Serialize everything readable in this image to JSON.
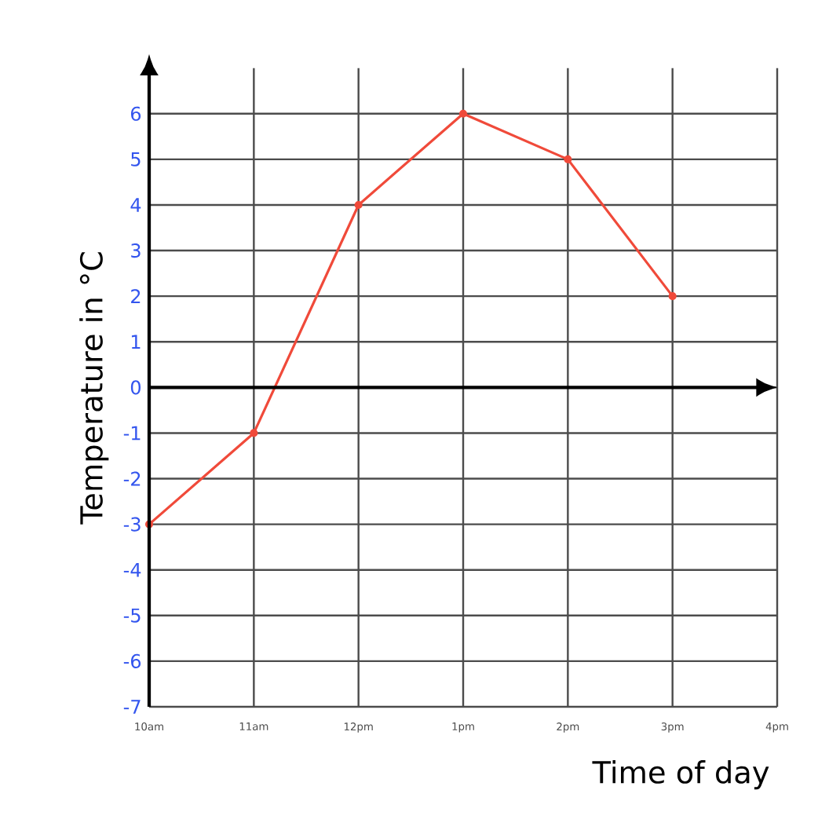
{
  "chart_data": {
    "type": "line",
    "xlabel": "Time of day",
    "ylabel": "Temperature in °C",
    "categories": [
      "10am",
      "11am",
      "12pm",
      "1pm",
      "2pm",
      "3pm",
      "4pm"
    ],
    "series": [
      {
        "color": "#f04a3a",
        "values": [
          -3,
          -1,
          4,
          6,
          5,
          2,
          null
        ]
      }
    ],
    "ylim": [
      -7,
      7
    ],
    "yticks": [
      -7,
      -6,
      -5,
      -4,
      -3,
      -2,
      -1,
      0,
      1,
      2,
      3,
      4,
      5,
      6
    ],
    "grid": true,
    "marker": "circle",
    "line_style": "solid"
  }
}
